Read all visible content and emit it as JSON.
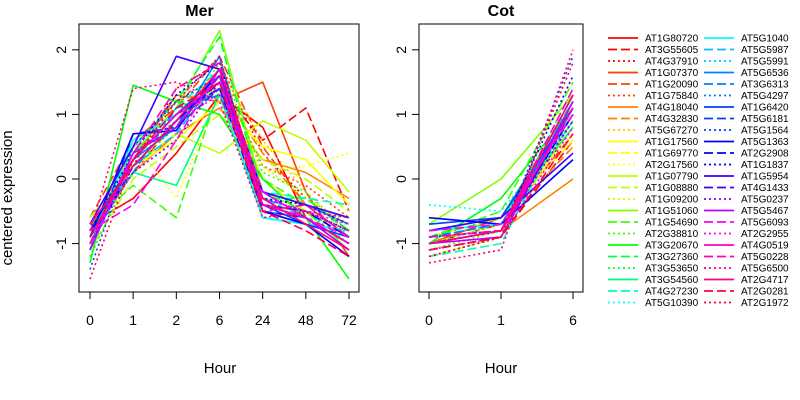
{
  "chart_data": [
    {
      "type": "line",
      "title": "Mer",
      "xlabel": "Hour",
      "ylabel": "centered expression",
      "categories": [
        "0",
        "1",
        "2",
        "6",
        "24",
        "48",
        "72"
      ],
      "ylim": [
        -1.75,
        2.4
      ],
      "yticks": [
        -1,
        0,
        1,
        2
      ],
      "legend": "right",
      "grid": false
    },
    {
      "type": "line",
      "title": "Cot",
      "xlabel": "Hour",
      "ylabel": "",
      "categories": [
        "0",
        "1",
        "6"
      ],
      "ylim": [
        -1.75,
        2.4
      ],
      "yticks": [
        -1,
        0,
        1,
        2
      ],
      "legend": "right",
      "grid": false
    }
  ],
  "line_styles": [
    "solid",
    "dashed",
    "dotted"
  ],
  "series": [
    {
      "name": "AT1G80720",
      "color": "#ff0000",
      "mer": [
        -0.7,
        -0.3,
        0.4,
        1.3,
        0.8,
        -0.6,
        -1.0
      ],
      "cot": [
        -1.0,
        -0.7,
        0.8
      ]
    },
    {
      "name": "AT3G55605",
      "color": "#ff0000",
      "mer": [
        -0.9,
        0.1,
        0.9,
        1.4,
        0.6,
        1.1,
        -0.5
      ],
      "cot": [
        -1.1,
        -0.9,
        0.6
      ]
    },
    {
      "name": "AT4G37910",
      "color": "#ff0000",
      "mer": [
        -1.2,
        0.2,
        1.4,
        1.8,
        0.4,
        -0.3,
        -0.8
      ],
      "cot": [
        -0.9,
        -0.8,
        0.9
      ]
    },
    {
      "name": "AT1G07370",
      "color": "#ff4000",
      "mer": [
        -0.8,
        0.3,
        1.3,
        1.2,
        1.5,
        -0.2,
        -1.2
      ],
      "cot": [
        -1.0,
        -0.6,
        1.0
      ]
    },
    {
      "name": "AT1G20090",
      "color": "#ff4000",
      "mer": [
        -0.6,
        0.6,
        1.1,
        1.9,
        0.5,
        -0.4,
        -0.9
      ],
      "cot": [
        -0.8,
        -0.7,
        0.7
      ]
    },
    {
      "name": "AT1G75840",
      "color": "#ff4000",
      "mer": [
        -1.1,
        0.4,
        0.9,
        1.6,
        0.2,
        -0.1,
        -0.6
      ],
      "cot": [
        -1.2,
        -0.9,
        1.1
      ]
    },
    {
      "name": "AT4G18040",
      "color": "#ff8000",
      "mer": [
        -0.9,
        0.1,
        0.7,
        1.1,
        0.3,
        0.1,
        -0.3
      ],
      "cot": [
        -1.0,
        -0.8,
        0.0
      ]
    },
    {
      "name": "AT4G32830",
      "color": "#ff8000",
      "mer": [
        -0.8,
        0.5,
        1.2,
        1.4,
        0.4,
        -0.4,
        -0.7
      ],
      "cot": [
        -0.9,
        -0.7,
        0.5
      ]
    },
    {
      "name": "AT5G67270",
      "color": "#ffbf00",
      "mer": [
        -1.0,
        0.3,
        1.0,
        1.7,
        0.6,
        -0.2,
        -0.8
      ],
      "cot": [
        -1.1,
        -0.8,
        0.9
      ]
    },
    {
      "name": "AT1G17560",
      "color": "#ffff00",
      "mer": [
        -0.7,
        0.2,
        0.6,
        1.2,
        0.5,
        0.3,
        -0.4
      ],
      "cot": [
        -0.9,
        -0.6,
        0.6
      ]
    },
    {
      "name": "AT1G69770",
      "color": "#ffff00",
      "mer": [
        -1.0,
        0.4,
        0.8,
        1.5,
        0.0,
        -0.5,
        -0.9
      ],
      "cot": [
        -1.0,
        -0.7,
        0.8
      ]
    },
    {
      "name": "AT2G17560",
      "color": "#ffff00",
      "mer": [
        -0.9,
        0.6,
        -0.3,
        1.3,
        0.1,
        0.2,
        0.4
      ],
      "cot": [
        -0.8,
        -0.6,
        0.7
      ]
    },
    {
      "name": "AT1G07790",
      "color": "#bfff00",
      "mer": [
        -0.6,
        0.2,
        0.7,
        0.4,
        0.9,
        0.6,
        -0.2
      ],
      "cot": [
        -1.0,
        -0.8,
        1.0
      ]
    },
    {
      "name": "AT1G08880",
      "color": "#bfff00",
      "mer": [
        -1.1,
        0.0,
        0.5,
        1.0,
        0.3,
        0.0,
        -0.5
      ],
      "cot": [
        -1.2,
        -0.9,
        1.2
      ]
    },
    {
      "name": "AT1G09200",
      "color": "#bfff00",
      "mer": [
        -0.8,
        0.3,
        0.9,
        1.6,
        0.2,
        -0.3,
        -0.7
      ],
      "cot": [
        -0.9,
        -0.8,
        0.8
      ]
    },
    {
      "name": "AT1G51060",
      "color": "#80ff00",
      "mer": [
        -1.0,
        0.4,
        1.1,
        2.3,
        -0.2,
        -0.5,
        -1.1
      ],
      "cot": [
        -0.7,
        0.0,
        1.3
      ]
    },
    {
      "name": "AT1G54690",
      "color": "#40ff00",
      "mer": [
        -0.7,
        -0.1,
        -0.6,
        1.4,
        0.0,
        -0.4,
        -0.6
      ],
      "cot": [
        -0.9,
        -0.5,
        1.5
      ]
    },
    {
      "name": "AT2G38810",
      "color": "#40ff00",
      "mer": [
        -1.2,
        0.2,
        0.8,
        1.8,
        0.1,
        -0.2,
        -0.9
      ],
      "cot": [
        -1.1,
        -0.8,
        1.4
      ]
    },
    {
      "name": "AT3G20670",
      "color": "#00ff00",
      "mer": [
        -1.3,
        1.45,
        1.2,
        1.0,
        0.0,
        -0.6,
        -1.55
      ],
      "cot": [
        -1.0,
        -0.3,
        1.1
      ]
    },
    {
      "name": "AT3G27360",
      "color": "#00ff40",
      "mer": [
        -0.9,
        0.5,
        1.2,
        2.2,
        -0.3,
        -0.3,
        -0.8
      ],
      "cot": [
        -0.9,
        -0.6,
        1.2
      ]
    },
    {
      "name": "AT3G53650",
      "color": "#00ff40",
      "mer": [
        -1.0,
        0.3,
        1.0,
        1.5,
        -0.4,
        -0.5,
        -1.0
      ],
      "cot": [
        -1.0,
        -0.7,
        0.9
      ]
    },
    {
      "name": "AT3G54560",
      "color": "#00ff80",
      "mer": [
        -0.8,
        0.1,
        -0.1,
        1.3,
        -0.6,
        -0.7,
        -0.9
      ],
      "cot": [
        -0.8,
        -0.6,
        0.8
      ]
    },
    {
      "name": "AT4G27230",
      "color": "#00ffbf",
      "mer": [
        -1.1,
        0.3,
        1.1,
        1.7,
        -0.2,
        -0.3,
        -0.4
      ],
      "cot": [
        -1.2,
        -1.0,
        1.1
      ]
    },
    {
      "name": "AT5G10390",
      "color": "#00ffff",
      "mer": [
        -0.9,
        0.4,
        0.9,
        1.4,
        -0.5,
        -0.6,
        -0.7
      ],
      "cot": [
        -0.4,
        -0.5,
        0.9
      ]
    },
    {
      "name": "AT5G1040",
      "color": "#00ffff",
      "mer": [
        -1.0,
        0.6,
        1.0,
        1.5,
        -0.6,
        -0.7,
        -0.8
      ],
      "cot": [
        -0.8,
        -0.7,
        1.0
      ]
    },
    {
      "name": "AT5G5987",
      "color": "#00bfff",
      "mer": [
        -0.8,
        0.2,
        0.7,
        1.6,
        -0.3,
        -0.6,
        -1.1
      ],
      "cot": [
        -1.0,
        -0.8,
        1.3
      ]
    },
    {
      "name": "AT5G5991",
      "color": "#00bfff",
      "mer": [
        -1.1,
        0.5,
        1.0,
        1.4,
        -0.4,
        -0.5,
        -0.9
      ],
      "cot": [
        -0.9,
        -0.7,
        1.1
      ]
    },
    {
      "name": "AT5G6536",
      "color": "#0080ff",
      "mer": [
        -0.9,
        0.3,
        0.8,
        1.9,
        -0.5,
        -0.6,
        -1.0
      ],
      "cot": [
        -1.0,
        -0.8,
        1.2
      ]
    },
    {
      "name": "AT3G6313",
      "color": "#0080ff",
      "mer": [
        -0.7,
        0.1,
        1.1,
        1.3,
        -0.2,
        -0.4,
        -0.7
      ],
      "cot": [
        -0.9,
        -0.7,
        1.0
      ]
    },
    {
      "name": "AT5G4297",
      "color": "#0080ff",
      "mer": [
        -1.0,
        0.4,
        0.9,
        1.5,
        -0.3,
        -0.5,
        -0.6
      ],
      "cot": [
        -0.8,
        -0.6,
        0.9
      ]
    },
    {
      "name": "AT1G6420",
      "color": "#0040ff",
      "mer": [
        -0.8,
        0.3,
        1.0,
        1.6,
        -0.4,
        -0.7,
        -0.9
      ],
      "cot": [
        -0.7,
        -0.6,
        1.1
      ]
    },
    {
      "name": "AT5G6181",
      "color": "#0040ff",
      "mer": [
        -1.1,
        0.7,
        0.8,
        1.4,
        -0.2,
        -0.6,
        -1.0
      ],
      "cot": [
        -1.0,
        -0.8,
        1.3
      ]
    },
    {
      "name": "AT5G1564",
      "color": "#0040ff",
      "mer": [
        -1.4,
        0.5,
        1.2,
        1.6,
        -0.3,
        -0.5,
        -0.8
      ],
      "cot": [
        -1.2,
        -0.9,
        1.9
      ]
    },
    {
      "name": "AT5G1363",
      "color": "#0000ff",
      "mer": [
        -0.9,
        0.7,
        0.75,
        1.7,
        -0.5,
        -0.7,
        -1.2
      ],
      "cot": [
        -0.6,
        -0.7,
        0.3
      ]
    },
    {
      "name": "AT2G2908",
      "color": "#0000ff",
      "mer": [
        -1.0,
        0.2,
        0.9,
        1.5,
        -0.4,
        -0.5,
        -0.9
      ],
      "cot": [
        -0.9,
        -0.8,
        1.0
      ]
    },
    {
      "name": "AT1G1837",
      "color": "#0000ff",
      "mer": [
        -0.8,
        0.4,
        1.3,
        1.8,
        -0.3,
        -0.4,
        -0.7
      ],
      "cot": [
        -1.0,
        -0.8,
        1.6
      ]
    },
    {
      "name": "AT1G5954",
      "color": "#4000ff",
      "mer": [
        -0.7,
        0.5,
        1.9,
        1.7,
        -0.2,
        -0.4,
        -0.6
      ],
      "cot": [
        -0.8,
        -0.6,
        0.4
      ]
    },
    {
      "name": "AT4G1433",
      "color": "#4000ff",
      "mer": [
        -1.0,
        0.3,
        1.0,
        1.4,
        -0.5,
        -0.6,
        -1.0
      ],
      "cot": [
        -1.1,
        -0.9,
        1.1
      ]
    },
    {
      "name": "AT5G0237",
      "color": "#8000ff",
      "mer": [
        -0.9,
        0.1,
        0.6,
        1.5,
        -0.3,
        -0.5,
        -0.8
      ],
      "cot": [
        -0.9,
        -0.8,
        0.9
      ]
    },
    {
      "name": "AT5G5467",
      "color": "#bf00ff",
      "mer": [
        -1.1,
        0.4,
        0.8,
        1.6,
        -0.4,
        -0.6,
        -1.1
      ],
      "cot": [
        -1.0,
        -0.9,
        1.2
      ]
    },
    {
      "name": "AT5G6093",
      "color": "#ff00ff",
      "mer": [
        -0.8,
        -0.4,
        0.6,
        1.7,
        -0.2,
        -0.6,
        -0.9
      ],
      "cot": [
        -0.8,
        -0.7,
        1.0
      ]
    },
    {
      "name": "AT2G2955",
      "color": "#ff00ff",
      "mer": [
        -1.0,
        0.2,
        0.9,
        1.3,
        -0.3,
        -0.5,
        -0.7
      ],
      "cot": [
        -1.1,
        -0.9,
        0.8
      ]
    },
    {
      "name": "AT4G0519",
      "color": "#ff00bf",
      "mer": [
        -0.9,
        0.3,
        1.0,
        1.5,
        -0.4,
        -0.6,
        -1.0
      ],
      "cot": [
        -1.0,
        -0.8,
        1.1
      ]
    },
    {
      "name": "AT5G0228",
      "color": "#ff00bf",
      "mer": [
        -1.0,
        0.4,
        1.4,
        1.8,
        -0.5,
        -0.4,
        -0.9
      ],
      "cot": [
        -0.9,
        -0.8,
        1.4
      ]
    },
    {
      "name": "AT5G6500",
      "color": "#ff0080",
      "mer": [
        -0.8,
        1.4,
        1.5,
        1.2,
        -0.6,
        -0.5,
        -0.6
      ],
      "cot": [
        -1.3,
        -1.1,
        2.0
      ]
    },
    {
      "name": "AT2G4717",
      "color": "#ff0080",
      "mer": [
        -0.7,
        0.2,
        0.9,
        1.7,
        -0.3,
        -0.7,
        -1.1
      ],
      "cot": [
        -1.0,
        -0.8,
        1.3
      ]
    },
    {
      "name": "AT2G0281",
      "color": "#ff0040",
      "mer": [
        -0.9,
        0.3,
        1.1,
        1.5,
        -0.5,
        -0.8,
        -1.2
      ],
      "cot": [
        -1.1,
        -0.9,
        0.7
      ]
    },
    {
      "name": "AT2G1972",
      "color": "#ff0040",
      "mer": [
        -1.55,
        0.3,
        1.2,
        1.9,
        -0.4,
        -0.5,
        -0.8
      ],
      "cot": [
        -1.2,
        -0.9,
        1.8
      ]
    }
  ]
}
